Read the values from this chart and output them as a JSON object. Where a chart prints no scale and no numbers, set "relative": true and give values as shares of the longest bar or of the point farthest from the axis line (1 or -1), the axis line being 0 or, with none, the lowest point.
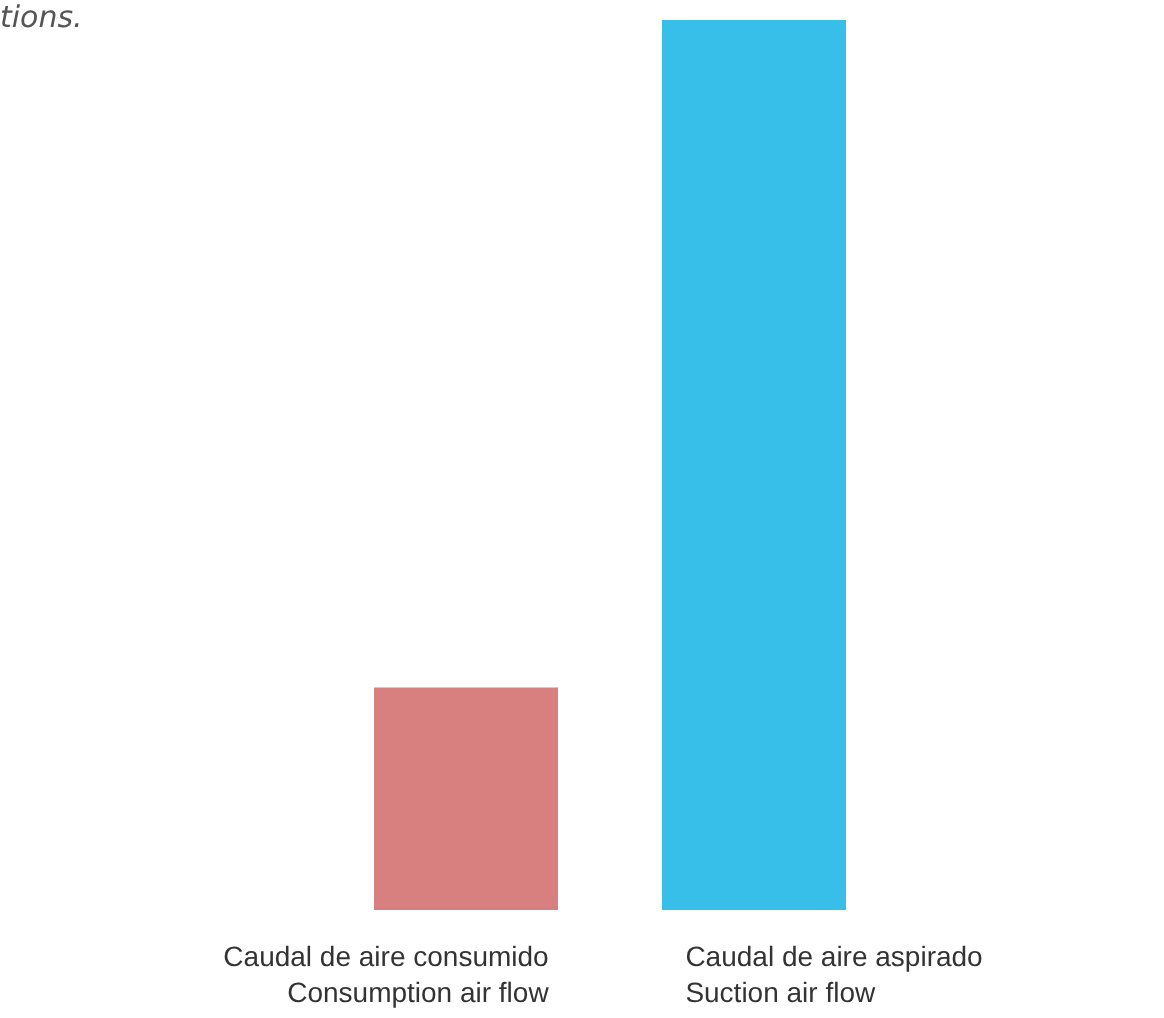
{
  "chart_data": {
    "type": "bar",
    "relative": true,
    "categories": [
      "Caudal de aire consumido\nConsumption air flow",
      "Caudal de aire aspirado\nSuction air flow"
    ],
    "values": [
      0.25,
      1
    ],
    "colors": [
      "#d88080",
      "#38bfe9"
    ],
    "annotations": [
      "tions."
    ]
  }
}
